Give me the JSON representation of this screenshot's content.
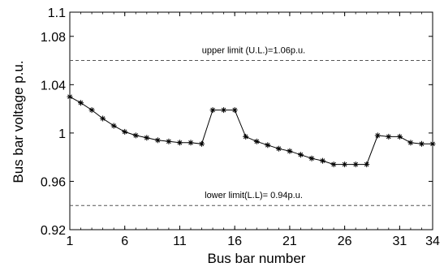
{
  "chart_data": {
    "type": "line",
    "xlabel": "Bus bar number",
    "ylabel": "Bus bar voltage p.u.",
    "xlim": [
      1,
      34
    ],
    "ylim": [
      0.92,
      1.1
    ],
    "x_ticks": [
      1,
      6,
      11,
      16,
      21,
      26,
      31,
      34
    ],
    "y_ticks": [
      0.92,
      0.96,
      1,
      1.04,
      1.08,
      1.1
    ],
    "y_tick_labels": [
      "0.92",
      "0.96",
      "1",
      "1.04",
      "1.08",
      "1.1"
    ],
    "grid": false,
    "series": [
      {
        "marker": "asterisk",
        "line_color": "#000000",
        "x": [
          1,
          2,
          3,
          4,
          5,
          6,
          7,
          8,
          9,
          10,
          11,
          12,
          13,
          14,
          15,
          16,
          17,
          18,
          19,
          20,
          21,
          22,
          23,
          24,
          25,
          26,
          27,
          28,
          29,
          30,
          31,
          32,
          33,
          34
        ],
        "values": [
          1.03,
          1.025,
          1.019,
          1.012,
          1.006,
          1.001,
          0.998,
          0.996,
          0.994,
          0.993,
          0.992,
          0.992,
          0.991,
          1.019,
          1.019,
          1.019,
          0.997,
          0.993,
          0.99,
          0.987,
          0.985,
          0.982,
          0.979,
          0.977,
          0.974,
          0.974,
          0.974,
          0.974,
          0.998,
          0.997,
          0.997,
          0.992,
          0.991,
          0.991
        ]
      }
    ],
    "reference_lines": [
      {
        "y": 1.06,
        "style": "dashed",
        "label": "upper limit (U.L.)=1.06p.u."
      },
      {
        "y": 0.94,
        "style": "dashed",
        "label": "lower limit(L.L)= 0.94p.u."
      }
    ]
  }
}
